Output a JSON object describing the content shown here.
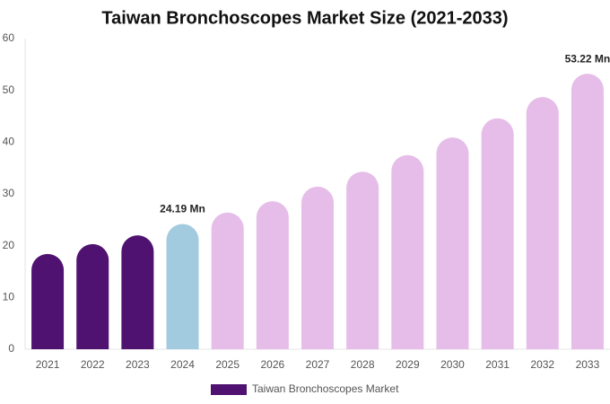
{
  "chart_data": {
    "type": "bar",
    "title": "Taiwan Bronchoscopes Market Size (2021-2033)",
    "categories": [
      "2021",
      "2022",
      "2023",
      "2024",
      "2025",
      "2026",
      "2027",
      "2028",
      "2029",
      "2030",
      "2031",
      "2032",
      "2033"
    ],
    "series": [
      {
        "name": "Taiwan Bronchoscopes Market",
        "color": "#4f1271",
        "values": [
          18.4,
          20.3,
          22.0,
          24.19,
          26.4,
          28.6,
          31.4,
          34.3,
          37.5,
          40.9,
          44.6,
          48.7,
          53.22
        ],
        "value_labels": [
          null,
          null,
          null,
          "24.19 Mn",
          null,
          null,
          null,
          null,
          null,
          null,
          null,
          null,
          "53.22 Mn"
        ],
        "colors": [
          "#4f1271",
          "#4f1271",
          "#4f1271",
          "#a3cbdf",
          "#e6bde9",
          "#e6bde9",
          "#e6bde9",
          "#e6bde9",
          "#e6bde9",
          "#e6bde9",
          "#e6bde9",
          "#e6bde9",
          "#e6bde9"
        ]
      }
    ],
    "ylim": [
      0,
      60
    ],
    "yticks": [
      0,
      10,
      20,
      30,
      40,
      50,
      60
    ],
    "grid": false,
    "legend": "bottom"
  }
}
